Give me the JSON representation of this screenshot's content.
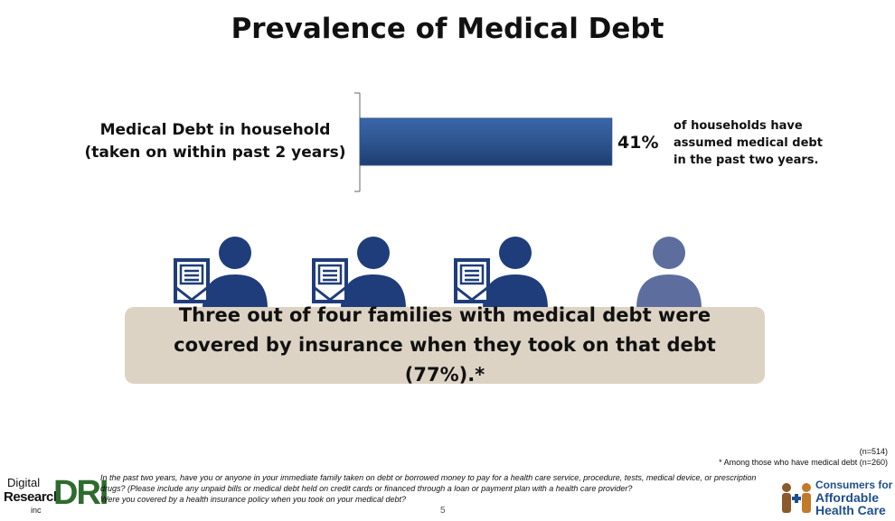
{
  "title": "Prevalence of Medical Debt",
  "chart_data": {
    "type": "bar",
    "orientation": "horizontal",
    "categories": [
      "Medical Debt in household (taken on within past 2 years)"
    ],
    "category_lines": [
      "Medical Debt in household",
      "(taken on within past 2 years)"
    ],
    "values": [
      41
    ],
    "value_labels": [
      "41%"
    ],
    "xlim": [
      0,
      100
    ],
    "bar_color": "#2e5590",
    "annotation_lines": [
      "of households have",
      "assumed medical debt",
      "in the past two years."
    ]
  },
  "people": [
    {
      "icon": "person-with-bill-icon",
      "color": "#1f3d7a"
    },
    {
      "icon": "person-with-bill-icon",
      "color": "#1f3d7a"
    },
    {
      "icon": "person-with-bill-icon",
      "color": "#1f3d7a"
    },
    {
      "icon": "person-icon",
      "color": "#5d6e9e"
    }
  ],
  "callout": {
    "text": "Three out of four families with medical debt were covered by insurance when they took on that debt (77%).*",
    "background": "#ddd3c4"
  },
  "sample": {
    "total": "(n=514)",
    "subgroup": "* Among those who have medical debt (n=260)"
  },
  "footer": {
    "questions": [
      "In the past two years, have you or anyone in your immediate family taken on debt or borrowed money to pay for a health care service, procedure, tests, medical device, or prescription drugs? (Please include any unpaid bills or medical debt held on credit cards or financed through a loan or payment plan with a health care provider?",
      "Were you covered by a health insurance policy when you took on your medical debt?"
    ],
    "page_number": "5",
    "left_logo": {
      "line1": "Digital",
      "line2": "Research",
      "line3": "inc",
      "mark": "DRI"
    },
    "right_logo": {
      "line1": "Consumers for",
      "line2": "Affordable",
      "line3": "Health Care"
    }
  }
}
